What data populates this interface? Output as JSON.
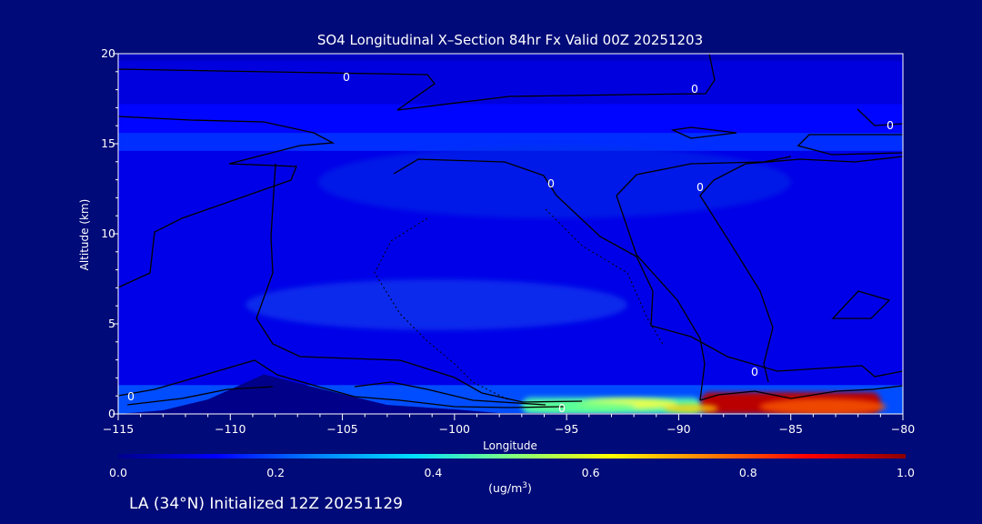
{
  "chart_data": {
    "type": "heatmap",
    "title": "SO4 Longitudinal X–Section 84hr  Fx Valid 00Z 20251203",
    "xlabel": "Longitude",
    "ylabel": "Altitude (km)",
    "xlim": [
      -115,
      -80
    ],
    "ylim": [
      0,
      20
    ],
    "x_ticks": [
      -115,
      -110,
      -105,
      -100,
      -95,
      -90,
      -85,
      -80
    ],
    "x_tick_labels": [
      "−115",
      "−110",
      "−105",
      "−100",
      "−95",
      "−90",
      "−85",
      "−80"
    ],
    "y_ticks": [
      0,
      5,
      10,
      15,
      20
    ],
    "y_tick_labels": [
      "0",
      "5",
      "10",
      "15",
      "20"
    ],
    "colorbar": {
      "min": 0.0,
      "max": 1.0,
      "ticks": [
        0.0,
        0.2,
        0.4,
        0.6,
        0.8,
        1.0
      ],
      "tick_labels": [
        "0.0",
        "0.2",
        "0.4",
        "0.6",
        "0.8",
        "1.0"
      ],
      "units_label": "(ug/m",
      "units_power": "3",
      "units_close": ")",
      "colormap": [
        "#00008c",
        "#0000ff",
        "#0080ff",
        "#00e0ff",
        "#80ff80",
        "#ffff00",
        "#ff8000",
        "#ff0000",
        "#8c0000"
      ]
    },
    "contour_label": "0",
    "fields": [
      {
        "name": "upper-layer-20",
        "lon": [
          -115,
          -80
        ],
        "alt": [
          19.6,
          20
        ],
        "value": 0.06
      },
      {
        "name": "upper-layer-18",
        "lon": [
          -115,
          -80
        ],
        "alt": [
          17.2,
          19.6
        ],
        "value": 0.09
      },
      {
        "name": "upper-layer-16",
        "lon": [
          -115,
          -80
        ],
        "alt": [
          15.6,
          17.2
        ],
        "value": 0.13
      },
      {
        "name": "upper-layer-15",
        "lon": [
          -115,
          -80
        ],
        "alt": [
          14.6,
          15.6
        ],
        "value": 0.17
      },
      {
        "name": "mid-layer",
        "lon": [
          -115,
          -80
        ],
        "alt": [
          1.2,
          14.6
        ],
        "value": 0.1
      },
      {
        "name": "boundary-layer",
        "lon": [
          -115,
          -80
        ],
        "alt": [
          0,
          1.6
        ],
        "value": 0.2
      },
      {
        "name": "plume-central",
        "lon": [
          -97,
          -89
        ],
        "alt": [
          0,
          0.9
        ],
        "value": 0.45
      },
      {
        "name": "plume-east",
        "lon": [
          -89,
          -81
        ],
        "alt": [
          0,
          1.2
        ],
        "value": 0.95
      }
    ],
    "terrain": [
      [
        -115,
        0
      ],
      [
        -113,
        0.2
      ],
      [
        -111,
        0.8
      ],
      [
        -108.5,
        2.2
      ],
      [
        -106,
        1.4
      ],
      [
        -103,
        0.5
      ],
      [
        -100,
        0.25
      ],
      [
        -98,
        0.05
      ],
      [
        -80,
        0
      ]
    ]
  },
  "footer": {
    "initialized_text": "LA (34°N) Initialized 12Z 20251129"
  }
}
